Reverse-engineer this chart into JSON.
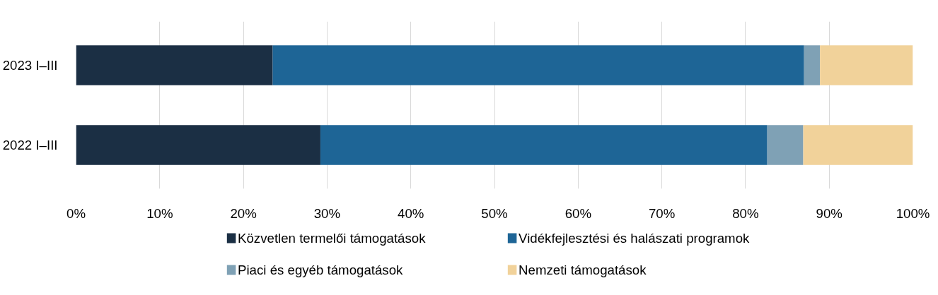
{
  "chart_data": {
    "type": "bar",
    "orientation": "horizontal",
    "stacked": true,
    "categories": [
      "2023 I–III",
      "2022 I–III"
    ],
    "series": [
      {
        "name": "Közvetlen termelői támogatások",
        "color": "#1b2f44",
        "values": [
          23.5,
          29.2
        ]
      },
      {
        "name": "Vidékfejlesztési és halászati programok",
        "color": "#1e6596",
        "values": [
          63.5,
          53.4
        ]
      },
      {
        "name": "Piaci és egyéb támogatások",
        "color": "#7fa1b5",
        "values": [
          1.9,
          4.3
        ]
      },
      {
        "name": "Nemzeti támogatások",
        "color": "#f1d29a",
        "values": [
          11.1,
          13.1
        ]
      }
    ],
    "xlim": [
      0,
      100
    ],
    "xticks": [
      {
        "value": 0,
        "label": "0%"
      },
      {
        "value": 10,
        "label": "10%"
      },
      {
        "value": 20,
        "label": "20%"
      },
      {
        "value": 30,
        "label": "30%"
      },
      {
        "value": 40,
        "label": "40%"
      },
      {
        "value": 50,
        "label": "50%"
      },
      {
        "value": 60,
        "label": "60%"
      },
      {
        "value": 70,
        "label": "70%"
      },
      {
        "value": 80,
        "label": "80%"
      },
      {
        "value": 90,
        "label": "90%"
      },
      {
        "value": 100,
        "label": "100%"
      }
    ],
    "grid": "x",
    "legend": "bottom"
  }
}
